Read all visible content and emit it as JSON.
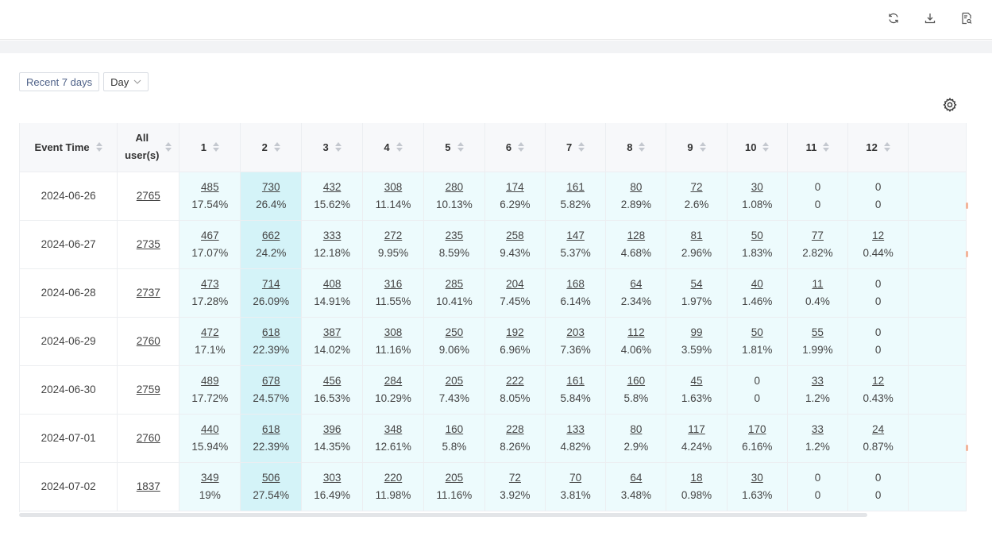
{
  "toolbar": {
    "icons": [
      "refresh-icon",
      "download-icon",
      "report-search-icon"
    ]
  },
  "filters": {
    "range_label": "Recent 7 days",
    "granularity_label": "Day"
  },
  "table": {
    "headers": {
      "event_time": "Event Time",
      "all_users_line1": "All",
      "all_users_line2": "user(s)",
      "days": [
        "1",
        "2",
        "3",
        "4",
        "5",
        "6",
        "7",
        "8",
        "9",
        "10",
        "11",
        "12"
      ]
    },
    "rows": [
      {
        "date": "2024-06-26",
        "all": "2765",
        "cells": [
          [
            "485",
            "17.54%"
          ],
          [
            "730",
            "26.4%"
          ],
          [
            "432",
            "15.62%"
          ],
          [
            "308",
            "11.14%"
          ],
          [
            "280",
            "10.13%"
          ],
          [
            "174",
            "6.29%"
          ],
          [
            "161",
            "5.82%"
          ],
          [
            "80",
            "2.89%"
          ],
          [
            "72",
            "2.6%"
          ],
          [
            "30",
            "1.08%"
          ],
          [
            "0",
            "0"
          ],
          [
            "0",
            "0"
          ]
        ]
      },
      {
        "date": "2024-06-27",
        "all": "2735",
        "cells": [
          [
            "467",
            "17.07%"
          ],
          [
            "662",
            "24.2%"
          ],
          [
            "333",
            "12.18%"
          ],
          [
            "272",
            "9.95%"
          ],
          [
            "235",
            "8.59%"
          ],
          [
            "258",
            "9.43%"
          ],
          [
            "147",
            "5.37%"
          ],
          [
            "128",
            "4.68%"
          ],
          [
            "81",
            "2.96%"
          ],
          [
            "50",
            "1.83%"
          ],
          [
            "77",
            "2.82%"
          ],
          [
            "12",
            "0.44%"
          ]
        ]
      },
      {
        "date": "2024-06-28",
        "all": "2737",
        "cells": [
          [
            "473",
            "17.28%"
          ],
          [
            "714",
            "26.09%"
          ],
          [
            "408",
            "14.91%"
          ],
          [
            "316",
            "11.55%"
          ],
          [
            "285",
            "10.41%"
          ],
          [
            "204",
            "7.45%"
          ],
          [
            "168",
            "6.14%"
          ],
          [
            "64",
            "2.34%"
          ],
          [
            "54",
            "1.97%"
          ],
          [
            "40",
            "1.46%"
          ],
          [
            "11",
            "0.4%"
          ],
          [
            "0",
            "0"
          ]
        ]
      },
      {
        "date": "2024-06-29",
        "all": "2760",
        "cells": [
          [
            "472",
            "17.1%"
          ],
          [
            "618",
            "22.39%"
          ],
          [
            "387",
            "14.02%"
          ],
          [
            "308",
            "11.16%"
          ],
          [
            "250",
            "9.06%"
          ],
          [
            "192",
            "6.96%"
          ],
          [
            "203",
            "7.36%"
          ],
          [
            "112",
            "4.06%"
          ],
          [
            "99",
            "3.59%"
          ],
          [
            "50",
            "1.81%"
          ],
          [
            "55",
            "1.99%"
          ],
          [
            "0",
            "0"
          ]
        ]
      },
      {
        "date": "2024-06-30",
        "all": "2759",
        "cells": [
          [
            "489",
            "17.72%"
          ],
          [
            "678",
            "24.57%"
          ],
          [
            "456",
            "16.53%"
          ],
          [
            "284",
            "10.29%"
          ],
          [
            "205",
            "7.43%"
          ],
          [
            "222",
            "8.05%"
          ],
          [
            "161",
            "5.84%"
          ],
          [
            "160",
            "5.8%"
          ],
          [
            "45",
            "1.63%"
          ],
          [
            "0",
            "0"
          ],
          [
            "33",
            "1.2%"
          ],
          [
            "12",
            "0.43%"
          ]
        ]
      },
      {
        "date": "2024-07-01",
        "all": "2760",
        "cells": [
          [
            "440",
            "15.94%"
          ],
          [
            "618",
            "22.39%"
          ],
          [
            "396",
            "14.35%"
          ],
          [
            "348",
            "12.61%"
          ],
          [
            "160",
            "5.8%"
          ],
          [
            "228",
            "8.26%"
          ],
          [
            "133",
            "4.82%"
          ],
          [
            "80",
            "2.9%"
          ],
          [
            "117",
            "4.24%"
          ],
          [
            "170",
            "6.16%"
          ],
          [
            "33",
            "1.2%"
          ],
          [
            "24",
            "0.87%"
          ]
        ]
      },
      {
        "date": "2024-07-02",
        "all": "1837",
        "cells": [
          [
            "349",
            "19%"
          ],
          [
            "506",
            "27.54%"
          ],
          [
            "303",
            "16.49%"
          ],
          [
            "220",
            "11.98%"
          ],
          [
            "205",
            "11.16%"
          ],
          [
            "72",
            "3.92%"
          ],
          [
            "70",
            "3.81%"
          ],
          [
            "64",
            "3.48%"
          ],
          [
            "18",
            "0.98%"
          ],
          [
            "30",
            "1.63%"
          ],
          [
            "0",
            "0"
          ],
          [
            "0",
            "0"
          ]
        ]
      }
    ]
  }
}
